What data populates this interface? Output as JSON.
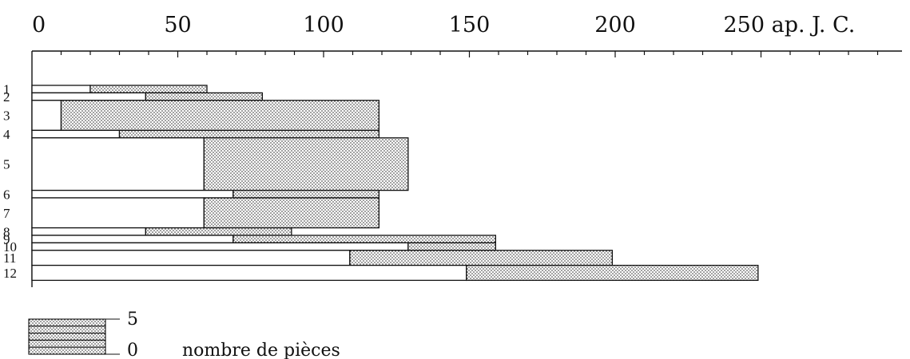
{
  "chart_data": {
    "type": "bar",
    "x_axis": {
      "min": 0,
      "max": 290,
      "tick_labels": [
        {
          "value": 0,
          "text": "0"
        },
        {
          "value": 50,
          "text": "50"
        },
        {
          "value": 100,
          "text": "100"
        },
        {
          "value": 150,
          "text": "150"
        },
        {
          "value": 200,
          "text": "200"
        },
        {
          "value": 250,
          "text": "250 ap. J. C."
        }
      ],
      "minor_tick_step": 10
    },
    "rows": [
      {
        "label": "1",
        "open_start": 0,
        "dot_start": 20,
        "end": 60,
        "pieces": 1
      },
      {
        "label": "2",
        "open_start": 0,
        "dot_start": 39,
        "end": 79,
        "pieces": 1
      },
      {
        "label": "3",
        "open_start": 0,
        "dot_start": 10,
        "end": 119,
        "pieces": 4
      },
      {
        "label": "4",
        "open_start": 0,
        "dot_start": 30,
        "end": 119,
        "pieces": 1
      },
      {
        "label": "5",
        "open_start": 0,
        "dot_start": 59,
        "end": 129,
        "pieces": 7
      },
      {
        "label": "6",
        "open_start": 0,
        "dot_start": 69,
        "end": 119,
        "pieces": 1
      },
      {
        "label": "7",
        "open_start": 0,
        "dot_start": 59,
        "end": 119,
        "pieces": 4
      },
      {
        "label": "8",
        "open_start": 0,
        "dot_start": 39,
        "end": 89,
        "pieces": 1
      },
      {
        "label": "9",
        "open_start": 0,
        "dot_start": 69,
        "end": 159,
        "pieces": 1
      },
      {
        "label": "10",
        "open_start": 0,
        "dot_start": 129,
        "end": 159,
        "pieces": 1
      },
      {
        "label": "11",
        "open_start": 0,
        "dot_start": 109,
        "end": 199,
        "pieces": 2
      },
      {
        "label": "12",
        "open_start": 0,
        "dot_start": 149,
        "end": 249,
        "pieces": 2
      }
    ],
    "legend": {
      "top_value": "5",
      "bottom_value": "0",
      "text": "nombre de pièces"
    }
  }
}
